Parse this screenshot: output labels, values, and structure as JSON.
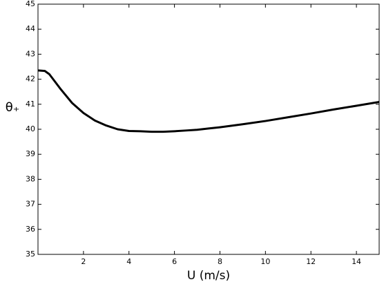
{
  "chart_data": {
    "type": "line",
    "xlabel": "U (m/s)",
    "ylabel": "θ₊",
    "x": [
      0,
      0.3,
      0.5,
      1,
      1.5,
      2,
      2.5,
      3,
      3.5,
      4,
      4.5,
      5,
      5.5,
      6,
      6.5,
      7,
      7.5,
      8,
      9,
      10,
      11,
      12,
      13,
      14,
      15
    ],
    "series": [
      {
        "name": "theta",
        "color": "#000000",
        "values": [
          42.35,
          42.33,
          42.2,
          41.6,
          41.05,
          40.65,
          40.35,
          40.15,
          40.0,
          39.93,
          39.92,
          39.9,
          39.9,
          39.92,
          39.95,
          39.98,
          40.03,
          40.08,
          40.2,
          40.33,
          40.48,
          40.63,
          40.79,
          40.94,
          41.09
        ]
      }
    ],
    "xlim": [
      0,
      15
    ],
    "xticks": [
      2,
      4,
      6,
      8,
      10,
      12,
      14
    ],
    "ylim": [
      35,
      45
    ],
    "yticks": [
      35,
      36,
      37,
      38,
      39,
      40,
      41,
      42,
      43,
      44,
      45
    ]
  }
}
